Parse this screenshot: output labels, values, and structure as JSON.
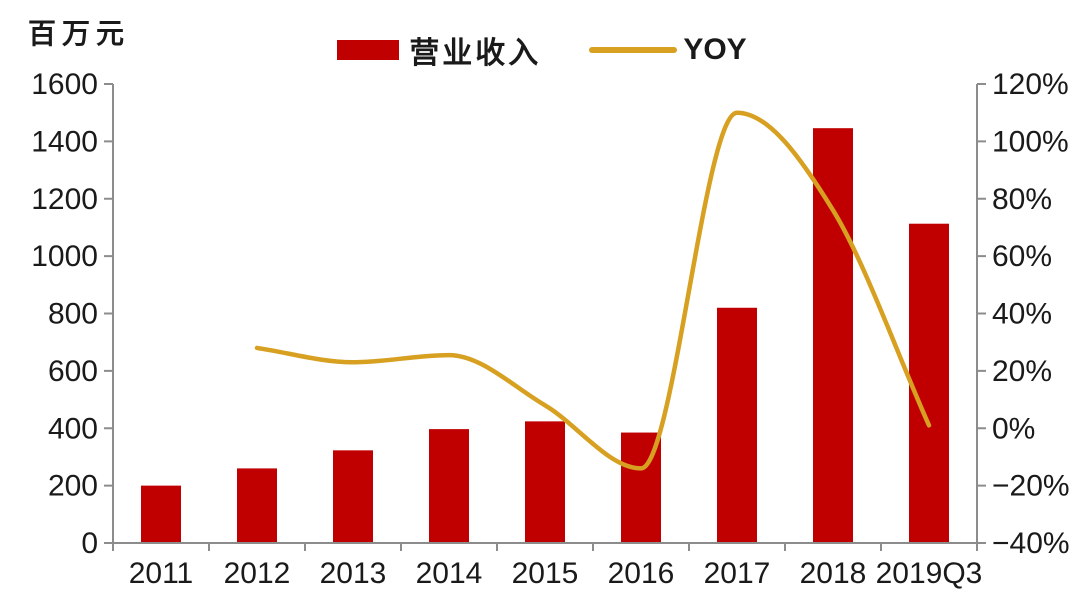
{
  "chart_data": {
    "type": "bar+line",
    "title": "",
    "categories": [
      "2011",
      "2012",
      "2013",
      "2014",
      "2015",
      "2016",
      "2017",
      "2018",
      "2019Q3"
    ],
    "series": [
      {
        "name": "营业收入",
        "type": "bar",
        "axis": "left",
        "color": "#C00000",
        "values": [
          200,
          260,
          323,
          397,
          424,
          385,
          820,
          1446,
          1113
        ]
      },
      {
        "name": "YOY",
        "type": "line",
        "axis": "right",
        "color": "#D7A021",
        "values": [
          null,
          28,
          23,
          25.5,
          8,
          -14,
          110,
          76,
          1
        ]
      }
    ],
    "left_axis": {
      "unit": "百万元",
      "min": 0,
      "max": 1600,
      "step": 200,
      "ticks": [
        0,
        200,
        400,
        600,
        800,
        1000,
        1200,
        1400,
        1600
      ]
    },
    "right_axis": {
      "min": -40,
      "max": 120,
      "step": 20,
      "suffix": "%",
      "ticks": [
        -40,
        -20,
        0,
        20,
        40,
        60,
        80,
        100,
        120
      ]
    },
    "legend_position": "top",
    "grid": false,
    "axis_color": "#8C8C8C",
    "text_color": "#1a1a1a"
  }
}
